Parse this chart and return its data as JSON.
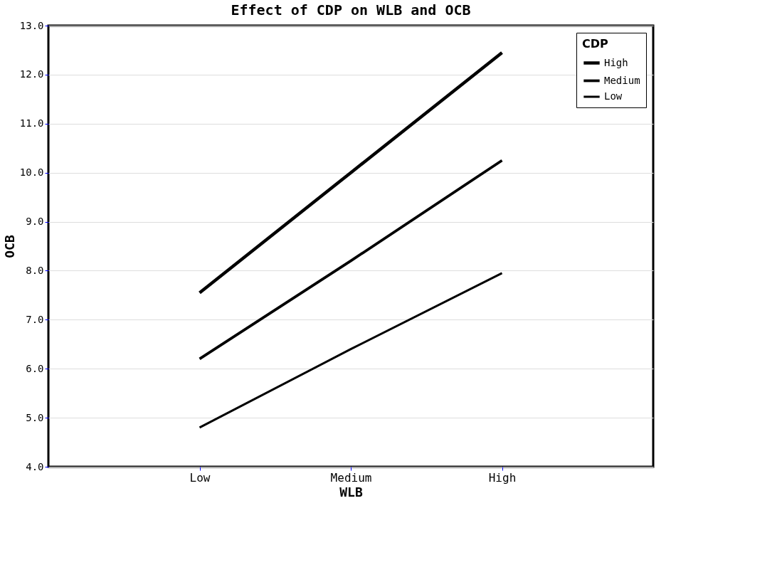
{
  "chart_data": {
    "type": "line",
    "title": "Effect of CDP on WLB and OCB",
    "xlabel": "WLB",
    "ylabel": "OCB",
    "legend_title": "CDP",
    "categories": [
      "Low",
      "Medium",
      "High"
    ],
    "series": [
      {
        "name": "High",
        "color": "#000000",
        "values": [
          7.55,
          10.0,
          12.45
        ]
      },
      {
        "name": "Medium",
        "color": "#000000",
        "values": [
          6.2,
          8.2,
          10.25
        ]
      },
      {
        "name": "Low",
        "color": "#000000",
        "values": [
          4.8,
          6.4,
          7.95
        ]
      }
    ],
    "ylim": [
      4,
      13
    ],
    "yticks": [
      {
        "value": 4,
        "label": "4.0"
      },
      {
        "value": 5,
        "label": "5.0"
      },
      {
        "value": 6,
        "label": "6.0"
      },
      {
        "value": 7,
        "label": "7.0"
      },
      {
        "value": 8,
        "label": "8.0"
      },
      {
        "value": 9,
        "label": "9.0"
      },
      {
        "value": 10,
        "label": "10.0"
      },
      {
        "value": 11,
        "label": "11.0"
      },
      {
        "value": 12,
        "label": "12.0"
      },
      {
        "value": 13,
        "label": "13.0"
      }
    ],
    "grid": "y",
    "legend": "top right",
    "marker": "none",
    "line_style": "solid"
  }
}
